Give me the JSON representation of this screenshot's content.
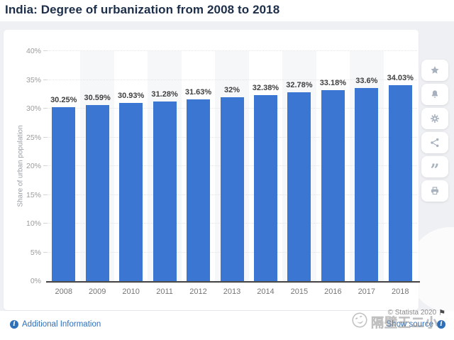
{
  "page": {
    "title": "India: Degree of urbanization from 2008 to 2018"
  },
  "chart_data": {
    "type": "bar",
    "title": "India: Degree of urbanization from 2008 to 2018",
    "categories": [
      "2008",
      "2009",
      "2010",
      "2011",
      "2012",
      "2013",
      "2014",
      "2015",
      "2016",
      "2017",
      "2018"
    ],
    "values": [
      30.25,
      30.59,
      30.93,
      31.28,
      31.63,
      32,
      32.38,
      32.78,
      33.18,
      33.6,
      34.03
    ],
    "value_labels": [
      "30.25%",
      "30.59%",
      "30.93%",
      "31.28%",
      "31.63%",
      "32%",
      "32.38%",
      "32.78%",
      "33.18%",
      "33.6%",
      "34.03%"
    ],
    "xlabel": "",
    "ylabel": "Share of urban population",
    "ylim": [
      0,
      40
    ],
    "yticks": [
      0,
      5,
      10,
      15,
      20,
      25,
      30,
      35,
      40
    ],
    "ytick_labels": [
      "0%",
      "5%",
      "10%",
      "15%",
      "20%",
      "25%",
      "30%",
      "35%",
      "40%"
    ],
    "grid": true,
    "legend": false,
    "alternating_column_stripes": true
  },
  "toolbar": {
    "icons": [
      "star-icon",
      "bell-icon",
      "gear-icon",
      "share-icon",
      "quote-icon",
      "print-icon"
    ]
  },
  "footer": {
    "additional_information": "Additional Information",
    "copyright": "© Statista 2020",
    "show_source": "Show source",
    "watermark": "隔壁王二小"
  },
  "colors": {
    "bar": "#3a76d2",
    "title": "#1c2e4a",
    "link": "#2e6fba",
    "page_background": "#eef0f3",
    "column_stripe": "#f6f7f8",
    "icon": "#a8b2bf"
  }
}
